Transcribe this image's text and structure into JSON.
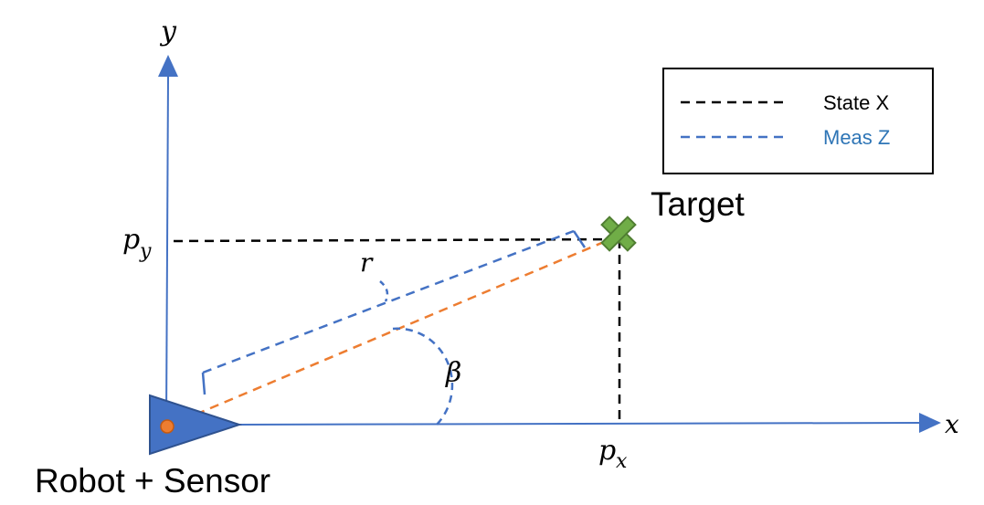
{
  "axes": {
    "x_label": "x",
    "y_label": "y"
  },
  "labels": {
    "target": "Target",
    "robot": "Robot + Sensor",
    "px_main": "p",
    "px_sub": "x",
    "py_main": "p",
    "py_sub": "y",
    "range": "r",
    "bearing": "β"
  },
  "legend": {
    "items": [
      {
        "label": "State X",
        "line_color": "#000000",
        "text_color": "#000000"
      },
      {
        "label": "Meas Z",
        "line_color": "#4472C4",
        "text_color": "#2E75B6"
      }
    ]
  },
  "colors": {
    "axis": "#4472C4",
    "state_line": "#000000",
    "meas_line": "#4472C4",
    "ray": "#ED7D31",
    "target_fill": "#70AD47",
    "target_stroke": "#507E32",
    "robot_fill": "#4472C4",
    "robot_stroke": "#2F528F"
  }
}
